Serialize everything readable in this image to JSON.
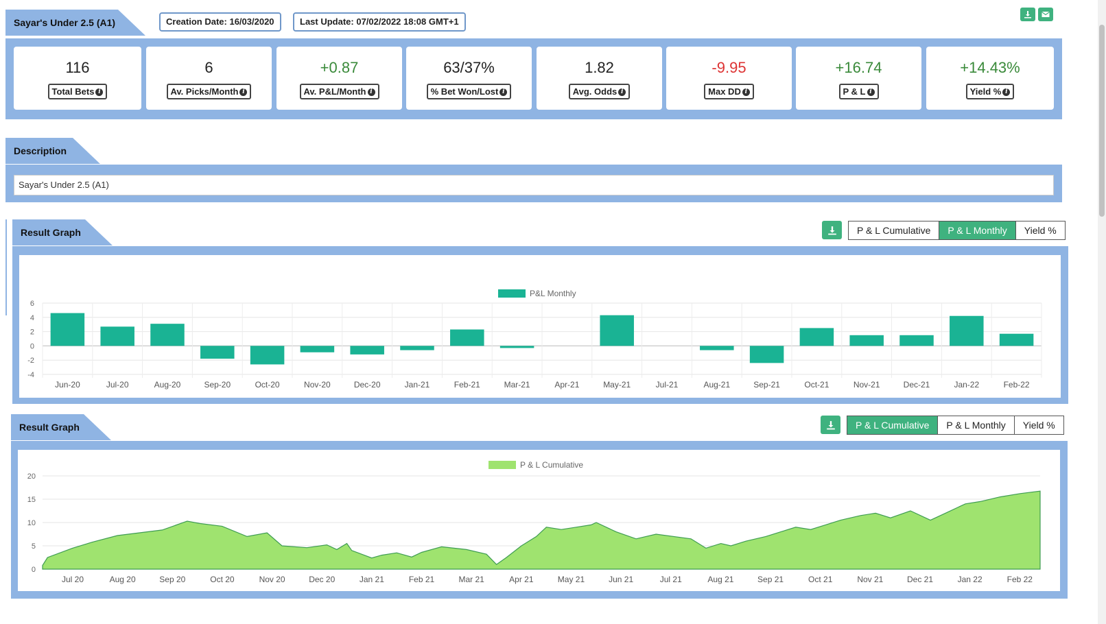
{
  "header": {
    "title": "Sayar's Under 2.5 (A1)",
    "creation_date": "Creation Date: 16/03/2020",
    "last_update": "Last Update: 07/02/2022 18:08 GMT+1",
    "download_icon": "download-icon",
    "email_icon": "envelope-icon"
  },
  "stats": [
    {
      "value": "116",
      "label": "Total Bets",
      "tone": "neutral"
    },
    {
      "value": "6",
      "label": "Av. Picks/Month",
      "tone": "neutral"
    },
    {
      "value": "+0.87",
      "label": "Av. P&L/Month",
      "tone": "pos"
    },
    {
      "value": "63/37%",
      "label": "% Bet Won/Lost",
      "tone": "neutral"
    },
    {
      "value": "1.82",
      "label": "Avg. Odds",
      "tone": "neutral"
    },
    {
      "value": "-9.95",
      "label": "Max DD",
      "tone": "neg"
    },
    {
      "value": "+16.74",
      "label": "P & L",
      "tone": "pos"
    },
    {
      "value": "+14.43%",
      "label": "Yield %",
      "tone": "pos"
    }
  ],
  "description": {
    "heading": "Description",
    "text": "Sayar's Under 2.5 (A1)"
  },
  "graph1": {
    "heading": "Result Graph",
    "tabs": [
      "P & L Cumulative",
      "P & L Monthly",
      "Yield %"
    ],
    "active_tab": 1
  },
  "graph2": {
    "heading": "Result Graph",
    "tabs": [
      "P & L Cumulative",
      "P & L Monthly",
      "Yield %"
    ],
    "active_tab": 0
  },
  "colors": {
    "accent_green": "#3fb27f",
    "panel_blue": "#8fb4e3",
    "bar_teal": "#1ab394",
    "area_green": "#9fe36f",
    "area_line": "#3e9c52"
  },
  "chart_data": [
    {
      "type": "bar",
      "legend": "P&L Monthly",
      "legend_position": "top-center",
      "categories": [
        "Jun-20",
        "Jul-20",
        "Aug-20",
        "Sep-20",
        "Oct-20",
        "Nov-20",
        "Dec-20",
        "Jan-21",
        "Feb-21",
        "Mar-21",
        "Apr-21",
        "May-21",
        "Jul-21",
        "Aug-21",
        "Sep-21",
        "Oct-21",
        "Nov-21",
        "Dec-21",
        "Jan-22",
        "Feb-22"
      ],
      "values": [
        4.6,
        2.7,
        3.1,
        -1.8,
        -2.6,
        -0.9,
        -1.2,
        -0.6,
        2.3,
        -0.3,
        0,
        4.3,
        0,
        -0.6,
        -2.4,
        2.5,
        1.5,
        1.5,
        4.2,
        1.7
      ],
      "ylim": [
        -4,
        6
      ],
      "yticks": [
        6,
        4,
        2,
        0,
        -2,
        -4
      ],
      "grid": true
    },
    {
      "type": "area",
      "legend": "P & L Cumulative",
      "legend_position": "top-center",
      "x_ticks": [
        "Jul 20",
        "Aug 20",
        "Sep 20",
        "Oct 20",
        "Nov 20",
        "Dec 20",
        "Jan 21",
        "Feb 21",
        "Mar 21",
        "Apr 21",
        "May 21",
        "Jun 21",
        "Jul 21",
        "Aug 21",
        "Sep 21",
        "Oct 21",
        "Nov 21",
        "Dec 21",
        "Jan 22",
        "Feb 22"
      ],
      "x": [
        0,
        0.1,
        0.6,
        1.0,
        1.5,
        2.4,
        2.9,
        3.15,
        3.6,
        4.1,
        4.5,
        4.8,
        5.3,
        5.7,
        5.9,
        6.1,
        6.2,
        6.6,
        6.8,
        7.1,
        7.4,
        7.6,
        8.0,
        8.5,
        8.9,
        9.1,
        9.3,
        9.6,
        9.9,
        10.1,
        10.4,
        10.7,
        11.0,
        11.1,
        11.5,
        11.9,
        12.3,
        13.0,
        13.3,
        13.6,
        13.8,
        14.1,
        14.5,
        14.8,
        15.1,
        15.4,
        15.7,
        16.0,
        16.4,
        16.7,
        17.0,
        17.4,
        17.8,
        18.1,
        18.5,
        18.8,
        19.2,
        19.6,
        20.0
      ],
      "values": [
        0.8,
        2.5,
        4.5,
        5.8,
        7.2,
        8.4,
        10.3,
        9.8,
        9.2,
        7.0,
        7.8,
        5.0,
        4.6,
        5.2,
        4.2,
        5.5,
        4.0,
        2.4,
        3.0,
        3.5,
        2.6,
        3.6,
        4.8,
        4.2,
        3.2,
        1.0,
        2.5,
        5.0,
        7.0,
        9.0,
        8.5,
        9.0,
        9.5,
        10.0,
        8.0,
        6.5,
        7.5,
        6.5,
        4.5,
        5.5,
        5.0,
        6.0,
        7.0,
        8.0,
        9.0,
        8.5,
        9.5,
        10.5,
        11.5,
        12.0,
        11.0,
        12.5,
        10.5,
        12.0,
        14.0,
        14.5,
        15.5,
        16.2,
        16.74
      ],
      "ylim": [
        0,
        20
      ],
      "yticks": [
        20,
        15,
        10,
        5,
        0
      ],
      "grid": true
    }
  ]
}
